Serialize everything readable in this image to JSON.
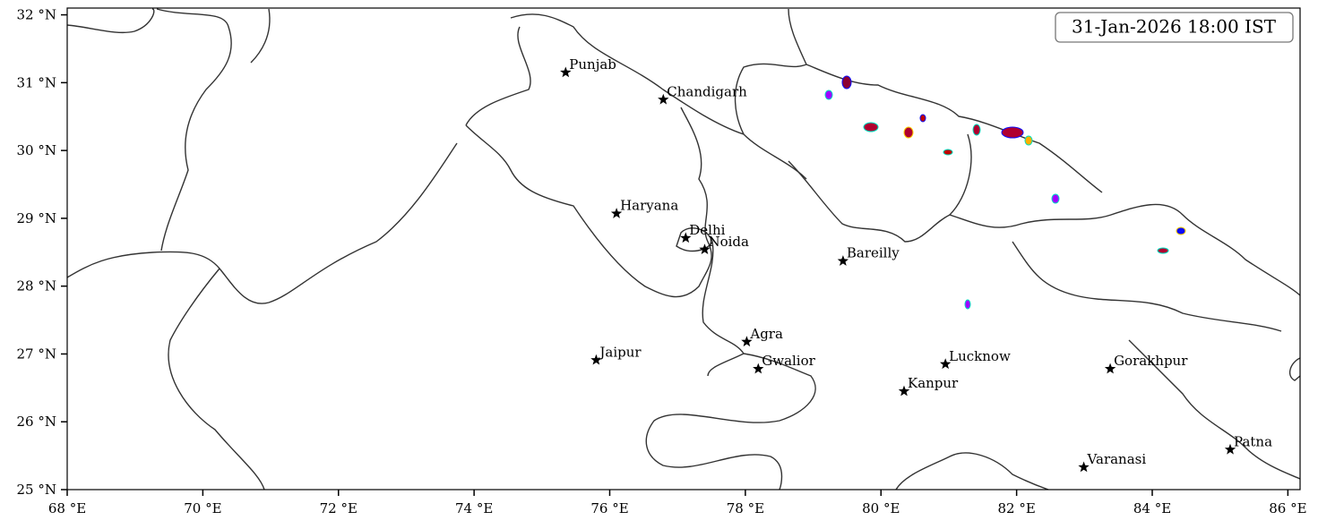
{
  "map": {
    "title": "31-Jan-2026 18:00 IST",
    "xlim": [
      68,
      86.18
    ],
    "ylim": [
      25,
      32.1
    ],
    "xticks": [
      {
        "value": 68,
        "label": "68 °E"
      },
      {
        "value": 70,
        "label": "70 °E"
      },
      {
        "value": 72,
        "label": "72 °E"
      },
      {
        "value": 74,
        "label": "74 °E"
      },
      {
        "value": 76,
        "label": "76 °E"
      },
      {
        "value": 78,
        "label": "78 °E"
      },
      {
        "value": 80,
        "label": "80 °E"
      },
      {
        "value": 82,
        "label": "82 °E"
      },
      {
        "value": 84,
        "label": "84 °E"
      },
      {
        "value": 86,
        "label": "86 °E"
      }
    ],
    "yticks": [
      {
        "value": 25,
        "label": "25 °N"
      },
      {
        "value": 26,
        "label": "26 °N"
      },
      {
        "value": 27,
        "label": "27 °N"
      },
      {
        "value": 28,
        "label": "28 °N"
      },
      {
        "value": 29,
        "label": "29 °N"
      },
      {
        "value": 30,
        "label": "30 °N"
      },
      {
        "value": 31,
        "label": "31 °N"
      },
      {
        "value": 32,
        "label": "32 °N"
      }
    ],
    "cities": [
      {
        "name": "Punjab",
        "lon": 75.35,
        "lat": 31.15
      },
      {
        "name": "Chandigarh",
        "lon": 76.79,
        "lat": 30.75
      },
      {
        "name": "Haryana",
        "lon": 76.1,
        "lat": 29.07
      },
      {
        "name": "Delhi",
        "lon": 77.12,
        "lat": 28.71
      },
      {
        "name": "Noida",
        "lon": 77.4,
        "lat": 28.54
      },
      {
        "name": "Bareilly",
        "lon": 79.44,
        "lat": 28.37
      },
      {
        "name": "Agra",
        "lon": 78.02,
        "lat": 27.18
      },
      {
        "name": "Jaipur",
        "lon": 75.8,
        "lat": 26.91
      },
      {
        "name": "Gwalior",
        "lon": 78.19,
        "lat": 26.78
      },
      {
        "name": "Lucknow",
        "lon": 80.95,
        "lat": 26.85
      },
      {
        "name": "Kanpur",
        "lon": 80.34,
        "lat": 26.45
      },
      {
        "name": "Gorakhpur",
        "lon": 83.38,
        "lat": 26.78
      },
      {
        "name": "Patna",
        "lon": 85.15,
        "lat": 25.59
      },
      {
        "name": "Varanasi",
        "lon": 82.99,
        "lat": 25.33
      }
    ]
  }
}
